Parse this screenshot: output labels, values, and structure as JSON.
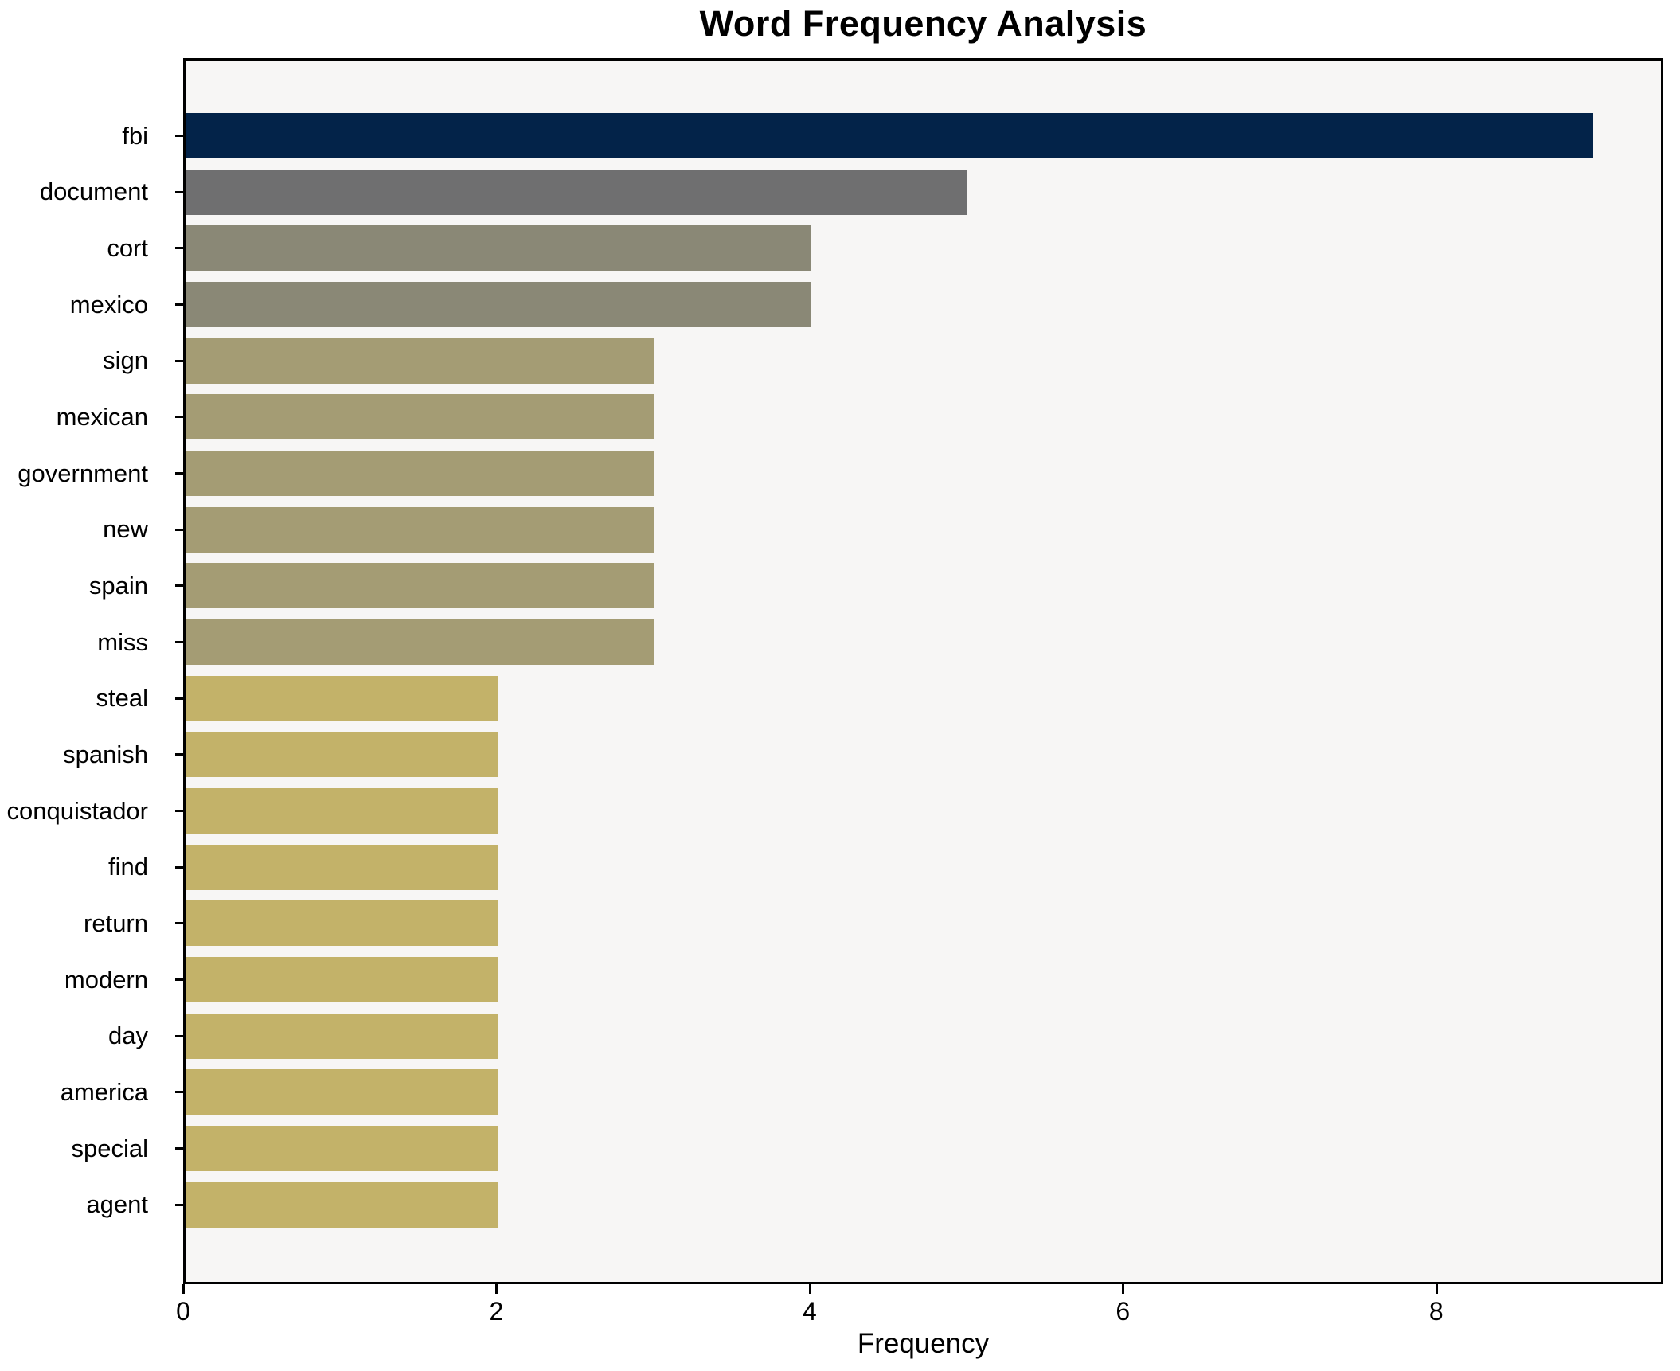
{
  "title": "Word Frequency Analysis",
  "xlabel": "Frequency",
  "chart_data": {
    "type": "bar",
    "orientation": "horizontal",
    "title": "Word Frequency Analysis",
    "xlabel": "Frequency",
    "ylabel": "",
    "categories": [
      "fbi",
      "document",
      "cort",
      "mexico",
      "sign",
      "mexican",
      "government",
      "new",
      "spain",
      "miss",
      "steal",
      "spanish",
      "conquistador",
      "find",
      "return",
      "modern",
      "day",
      "america",
      "special",
      "agent"
    ],
    "values": [
      9,
      5,
      4,
      4,
      3,
      3,
      3,
      3,
      3,
      3,
      2,
      2,
      2,
      2,
      2,
      2,
      2,
      2,
      2,
      2
    ],
    "bar_colors": [
      "#032349",
      "#6f6f70",
      "#8a8876",
      "#8a8876",
      "#a49c74",
      "#a49c74",
      "#a49c74",
      "#a49c74",
      "#a49c74",
      "#a49c74",
      "#c3b269",
      "#c3b269",
      "#c3b269",
      "#c3b269",
      "#c3b269",
      "#c3b269",
      "#c3b269",
      "#c3b269",
      "#c3b269",
      "#c3b269"
    ],
    "xticks": [
      0,
      2,
      4,
      6,
      8
    ],
    "xlim": [
      0,
      9.45
    ],
    "grid": false,
    "legend": "none",
    "plot_background": "#f7f6f5",
    "figure_background": "#ffffff",
    "spine_color": "#000000"
  }
}
